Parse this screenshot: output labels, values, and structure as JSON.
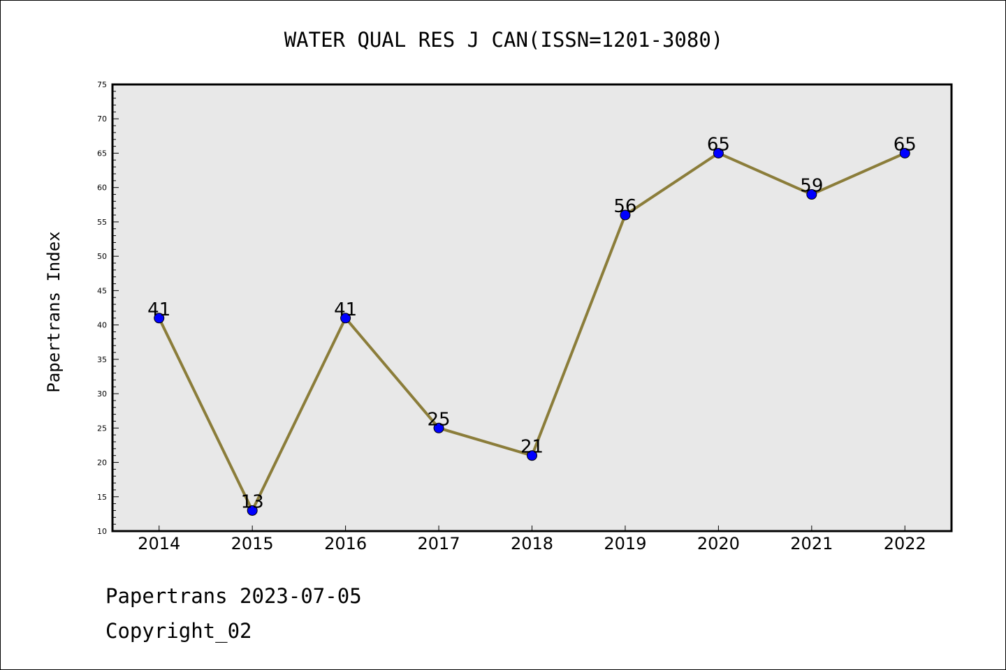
{
  "chart_data": {
    "type": "line",
    "title": "WATER QUAL RES J CAN(ISSN=1201-3080)",
    "xlabel": "",
    "ylabel": "Papertrans Index",
    "categories": [
      "2014",
      "2015",
      "2016",
      "2017",
      "2018",
      "2019",
      "2020",
      "2021",
      "2022"
    ],
    "series": [
      {
        "values": [
          41,
          13,
          41,
          25,
          21,
          56,
          65,
          59,
          65
        ]
      }
    ],
    "ylim": [
      10,
      75
    ],
    "yticks": [
      10,
      15,
      20,
      25,
      30,
      35,
      40,
      45,
      50,
      55,
      60,
      65,
      70,
      75
    ],
    "grid": false,
    "legend": "none",
    "data_labels": true,
    "colors": {
      "line": "#8b7d3a",
      "marker": "#0000ff",
      "plot_background": "#e8e8e8"
    }
  },
  "footer": {
    "line1": "Papertrans 2023-07-05",
    "line2": "Copyright_02"
  }
}
